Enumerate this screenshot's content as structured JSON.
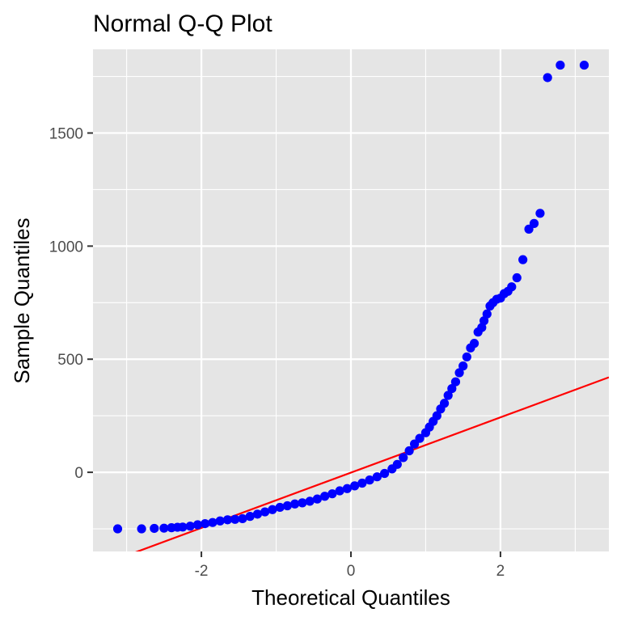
{
  "chart_data": {
    "type": "scatter",
    "title": "Normal Q-Q Plot",
    "xlabel": "Theoretical Quantiles",
    "ylabel": "Sample Quantiles",
    "xlim": [
      -3.45,
      3.45
    ],
    "ylim": [
      -350,
      1870
    ],
    "x_ticks": [
      -2,
      0,
      2
    ],
    "x_tick_labels": [
      "-2",
      "0",
      "2"
    ],
    "y_ticks": [
      0,
      500,
      1000,
      1500
    ],
    "y_tick_labels": [
      "0",
      "500",
      "1000",
      "1500"
    ],
    "grid": true,
    "panel_background": "#e5e5e5",
    "grid_color": "#ffffff",
    "point_color": "#0000ff",
    "line_color": "#ff0000",
    "reference_line": {
      "x": [
        -3.45,
        3.45
      ],
      "y": [
        -423,
        420
      ]
    },
    "points": {
      "x": [
        -3.12,
        -2.8,
        -2.63,
        -2.5,
        -2.4,
        -2.32,
        -2.25,
        -2.15,
        -2.05,
        -1.95,
        -1.85,
        -1.75,
        -1.65,
        -1.55,
        -1.45,
        -1.35,
        -1.25,
        -1.15,
        -1.05,
        -0.95,
        -0.85,
        -0.75,
        -0.65,
        -0.55,
        -0.45,
        -0.35,
        -0.25,
        -0.15,
        -0.05,
        0.05,
        0.15,
        0.25,
        0.35,
        0.45,
        0.55,
        0.62,
        0.7,
        0.78,
        0.85,
        0.92,
        1.0,
        1.05,
        1.1,
        1.15,
        1.2,
        1.25,
        1.3,
        1.35,
        1.4,
        1.45,
        1.5,
        1.55,
        1.6,
        1.65,
        1.7,
        1.75,
        1.78,
        1.82,
        1.86,
        1.9,
        1.95,
        2.0,
        2.05,
        2.1,
        2.15,
        2.22,
        2.3,
        2.38,
        2.45,
        2.53,
        2.63,
        2.8,
        3.12
      ],
      "y": [
        -250,
        -250,
        -248,
        -247,
        -245,
        -243,
        -242,
        -238,
        -232,
        -227,
        -222,
        -215,
        -210,
        -208,
        -205,
        -195,
        -185,
        -175,
        -165,
        -155,
        -148,
        -140,
        -135,
        -128,
        -118,
        -106,
        -95,
        -82,
        -72,
        -60,
        -48,
        -34,
        -20,
        -5,
        15,
        35,
        65,
        95,
        125,
        150,
        175,
        200,
        225,
        250,
        280,
        305,
        340,
        370,
        400,
        440,
        470,
        510,
        550,
        570,
        620,
        640,
        670,
        700,
        735,
        750,
        765,
        770,
        790,
        800,
        820,
        860,
        940,
        1075,
        1100,
        1145,
        1745,
        1800,
        1800
      ]
    }
  }
}
